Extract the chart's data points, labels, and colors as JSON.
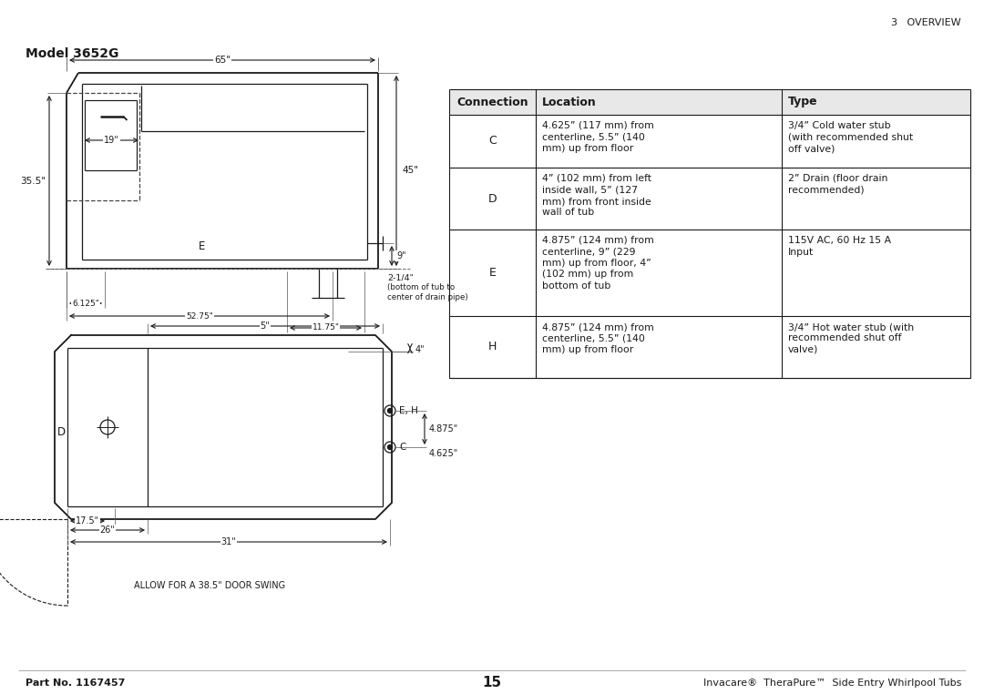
{
  "page_title_right": "3   OVERVIEW",
  "model_label": "Model 3652G",
  "footer_left": "Part No. 1167457",
  "footer_center": "15",
  "footer_right": "Invacare®  TheraPure™  Side Entry Whirlpool Tubs",
  "table_headers": [
    "Connection",
    "Location",
    "Type"
  ],
  "table_rows": [
    [
      "C",
      "4.625” (117 mm) from\ncenterline, 5.5” (140\nmm) up from floor",
      "3/4” Cold water stub\n(with recommended shut\noff valve)"
    ],
    [
      "D",
      "4” (102 mm) from left\ninside wall, 5” (127\nmm) from front inside\nwall of tub",
      "2” Drain (floor drain\nrecommended)"
    ],
    [
      "E",
      "4.875” (124 mm) from\ncenterline, 9” (229\nmm) up from floor, 4”\n(102 mm) up from\nbottom of tub",
      "115V AC, 60 Hz 15 A\nInput"
    ],
    [
      "H",
      "4.875” (124 mm) from\ncenterline, 5.5” (140\nmm) up from floor",
      "3/4” Hot water stub (with\nrecommended shut off\nvalve)"
    ]
  ],
  "bg_color": "#ffffff",
  "text_color": "#1a1a1a",
  "diagram_note": "ALLOW FOR A 38.5\" DOOR SWING"
}
